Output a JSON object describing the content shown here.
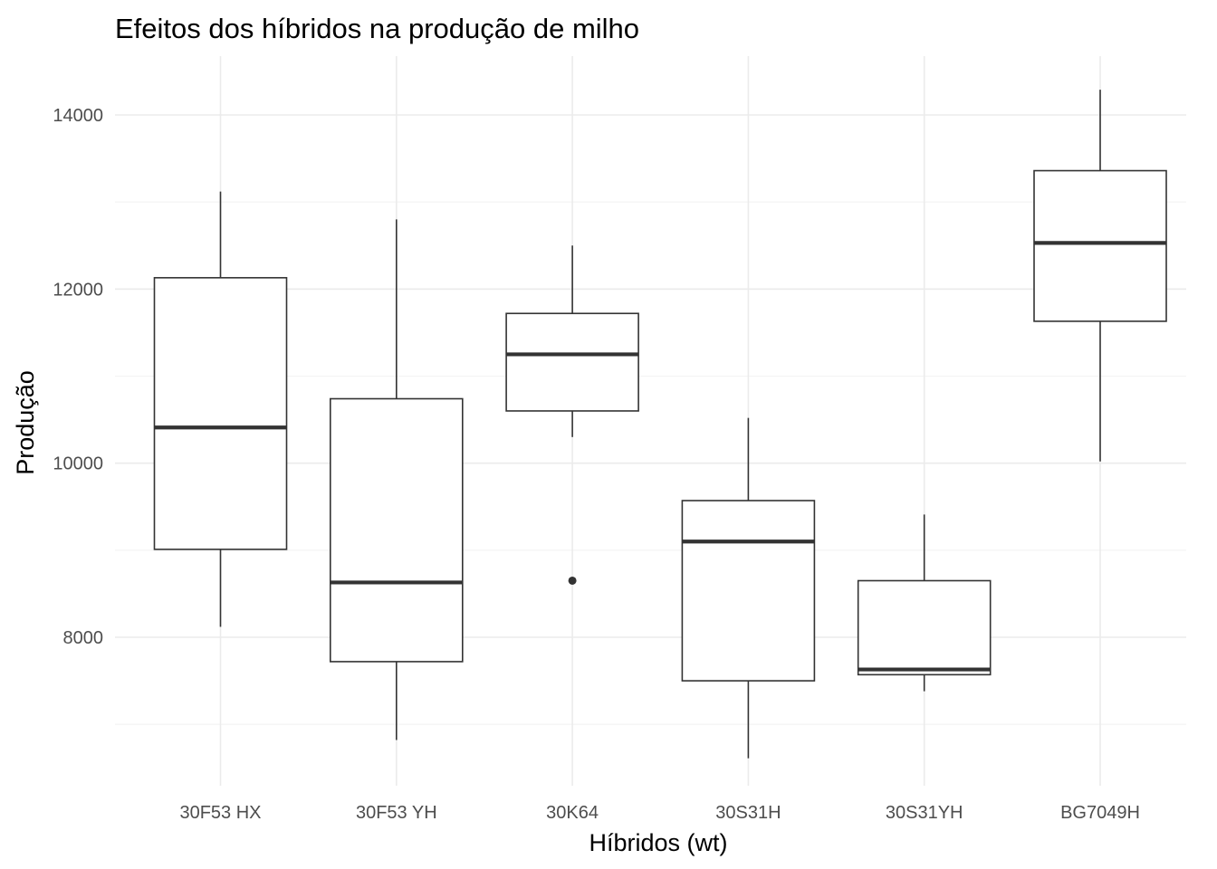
{
  "chart_data": {
    "type": "boxplot",
    "title": "Efeitos dos híbridos na produção de milho",
    "xlabel": "Híbridos (wt)",
    "ylabel": "Produção",
    "ylim": [
      6250,
      14700
    ],
    "yticks": [
      8000,
      10000,
      12000,
      14000
    ],
    "grid": true,
    "categories": [
      "30F53 HX",
      "30F53 YH",
      "30K64",
      "30S31H",
      "30S31YH",
      "BG7049H"
    ],
    "boxes": [
      {
        "category": "30F53 HX",
        "whisker_low": 8120,
        "q1": 9010,
        "median": 10410,
        "q3": 12130,
        "whisker_high": 13120,
        "outliers": []
      },
      {
        "category": "30F53 YH",
        "whisker_low": 6820,
        "q1": 7720,
        "median": 8630,
        "q3": 10740,
        "whisker_high": 12800,
        "outliers": []
      },
      {
        "category": "30K64",
        "whisker_low": 10300,
        "q1": 10600,
        "median": 11250,
        "q3": 11720,
        "whisker_high": 12500,
        "outliers": [
          8650
        ]
      },
      {
        "category": "30S31H",
        "whisker_low": 6610,
        "q1": 7500,
        "median": 9100,
        "q3": 9570,
        "whisker_high": 10520,
        "outliers": []
      },
      {
        "category": "30S31YH",
        "whisker_low": 7380,
        "q1": 7570,
        "median": 7630,
        "q3": 8650,
        "whisker_high": 9410,
        "outliers": []
      },
      {
        "category": "BG7049H",
        "whisker_low": 10020,
        "q1": 11630,
        "median": 12530,
        "q3": 13360,
        "whisker_high": 14290,
        "outliers": []
      }
    ]
  }
}
